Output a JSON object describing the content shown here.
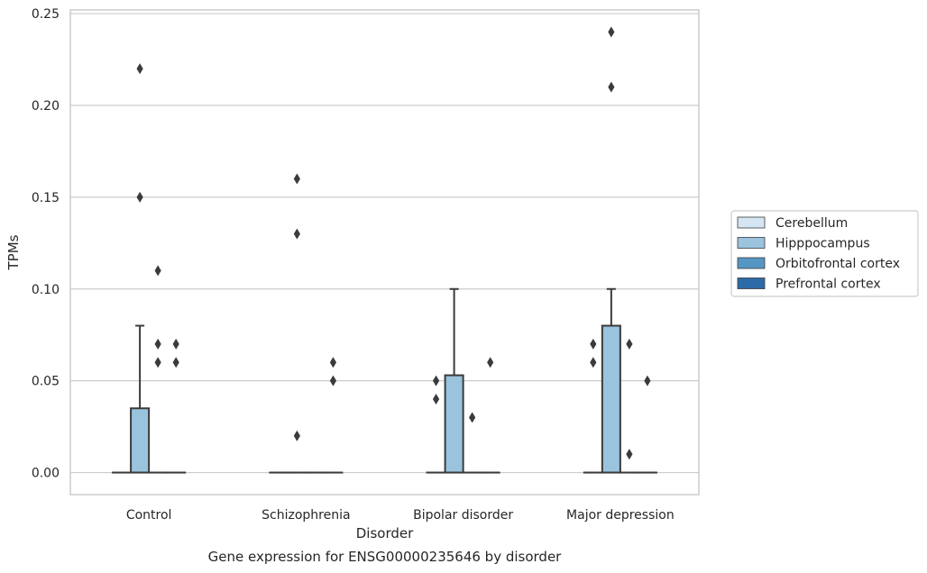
{
  "chart_data": {
    "type": "box",
    "title": "",
    "caption": "Gene expression for ENSG00000235646 by disorder",
    "xlabel": "Disorder",
    "ylabel": "TPMs",
    "ylim": [
      -0.012,
      0.252
    ],
    "yticks": [
      "0.00",
      "0.05",
      "0.10",
      "0.15",
      "0.20",
      "0.25"
    ],
    "categories": [
      "Control",
      "Schizophrenia",
      "Bipolar disorder",
      "Major depression"
    ],
    "grid": true,
    "legend_position": "right",
    "series": [
      {
        "name": "Cerebellum",
        "color": "#d6e5f3",
        "boxes": [
          {
            "q1": 0,
            "median": 0,
            "q3": 0,
            "whisker_low": 0,
            "whisker_high": 0,
            "outliers": []
          },
          {
            "q1": 0,
            "median": 0,
            "q3": 0,
            "whisker_low": 0,
            "whisker_high": 0,
            "outliers": []
          },
          {
            "q1": 0,
            "median": 0,
            "q3": 0,
            "whisker_low": 0,
            "whisker_high": 0,
            "outliers": [
              0.04,
              0.05
            ]
          },
          {
            "q1": 0,
            "median": 0,
            "q3": 0,
            "whisker_low": 0,
            "whisker_high": 0,
            "outliers": [
              0.06,
              0.07
            ]
          }
        ]
      },
      {
        "name": "Hipppocampus",
        "color": "#9ac3dd",
        "boxes": [
          {
            "q1": 0,
            "median": 0,
            "q3": 0.035,
            "whisker_low": 0,
            "whisker_high": 0.08,
            "outliers": [
              0.15,
              0.22
            ]
          },
          {
            "q1": 0,
            "median": 0,
            "q3": 0,
            "whisker_low": 0,
            "whisker_high": 0,
            "outliers": [
              0.02,
              0.13,
              0.16
            ]
          },
          {
            "q1": 0,
            "median": 0,
            "q3": 0.053,
            "whisker_low": 0,
            "whisker_high": 0.1,
            "outliers": []
          },
          {
            "q1": 0,
            "median": 0,
            "q3": 0.08,
            "whisker_low": 0,
            "whisker_high": 0.1,
            "outliers": [
              0.21,
              0.24
            ]
          }
        ]
      },
      {
        "name": "Orbitofrontal cortex",
        "color": "#5696c3",
        "boxes": [
          {
            "q1": 0,
            "median": 0,
            "q3": 0,
            "whisker_low": 0,
            "whisker_high": 0,
            "outliers": [
              0.06,
              0.07,
              0.11
            ]
          },
          {
            "q1": 0,
            "median": 0,
            "q3": 0,
            "whisker_low": 0,
            "whisker_high": 0,
            "outliers": []
          },
          {
            "q1": 0,
            "median": 0,
            "q3": 0,
            "whisker_low": 0,
            "whisker_high": 0,
            "outliers": [
              0.03
            ]
          },
          {
            "q1": 0,
            "median": 0,
            "q3": 0,
            "whisker_low": 0,
            "whisker_high": 0,
            "outliers": [
              0.01,
              0.07
            ]
          }
        ]
      },
      {
        "name": "Prefrontal cortex",
        "color": "#2c6ba8",
        "boxes": [
          {
            "q1": 0,
            "median": 0,
            "q3": 0,
            "whisker_low": 0,
            "whisker_high": 0,
            "outliers": [
              0.06,
              0.07
            ]
          },
          {
            "q1": 0,
            "median": 0,
            "q3": 0,
            "whisker_low": 0,
            "whisker_high": 0,
            "outliers": [
              0.05,
              0.06
            ]
          },
          {
            "q1": 0,
            "median": 0,
            "q3": 0,
            "whisker_low": 0,
            "whisker_high": 0,
            "outliers": [
              0.06
            ]
          },
          {
            "q1": 0,
            "median": 0,
            "q3": 0,
            "whisker_low": 0,
            "whisker_high": 0,
            "outliers": [
              0.05
            ]
          }
        ]
      }
    ]
  }
}
